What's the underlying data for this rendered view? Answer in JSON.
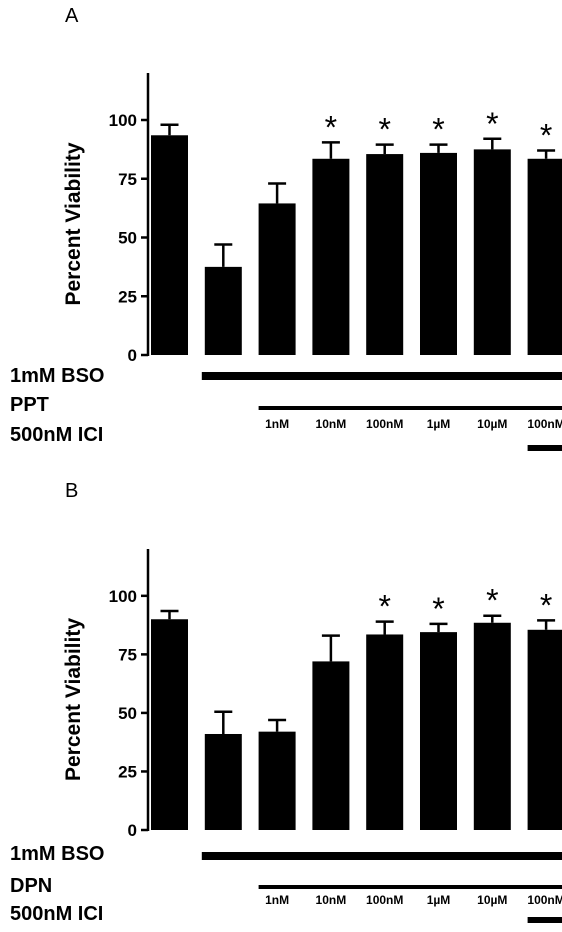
{
  "chart_data": [
    {
      "type": "bar",
      "panel": "A",
      "ylabel": "Percent Viability",
      "ylim": [
        0,
        120
      ],
      "yticks": [
        0,
        25,
        50,
        75,
        100
      ],
      "values": [
        93.5,
        37.5,
        64.5,
        83.5,
        85.5,
        86,
        87.5,
        83.5
      ],
      "errors": [
        4.5,
        9.5,
        8.5,
        7,
        4,
        3.5,
        4.5,
        3.5
      ],
      "significant": [
        false,
        false,
        false,
        true,
        true,
        true,
        true,
        true
      ],
      "significance_marker": "*",
      "treatment_rows": [
        {
          "label": "1mM BSO",
          "from_bar": 1,
          "to_bar": 7
        },
        {
          "label": "PPT",
          "from_bar": 2,
          "to_bar": 7
        },
        {
          "label": "500nM ICI",
          "from_bar": 7,
          "to_bar": 7
        }
      ],
      "concentrations": [
        "1nM",
        "10nM",
        "100nM",
        "1µM",
        "10µM",
        "100nM"
      ],
      "concentration_start_bar": 2
    },
    {
      "type": "bar",
      "panel": "B",
      "ylabel": "Percent Viability",
      "ylim": [
        0,
        120
      ],
      "yticks": [
        0,
        25,
        50,
        75,
        100
      ],
      "values": [
        90,
        41,
        42,
        72,
        83.5,
        84.5,
        88.5,
        85.5
      ],
      "errors": [
        3.5,
        9.5,
        5,
        11,
        5.5,
        3.5,
        3,
        4
      ],
      "significant": [
        false,
        false,
        false,
        false,
        true,
        true,
        true,
        true
      ],
      "significance_marker": "*",
      "treatment_rows": [
        {
          "label": "1mM BSO",
          "from_bar": 1,
          "to_bar": 7
        },
        {
          "label": "DPN",
          "from_bar": 2,
          "to_bar": 7
        },
        {
          "label": "500nM ICI",
          "from_bar": 7,
          "to_bar": 7
        }
      ],
      "concentrations": [
        "1nM",
        "10nM",
        "100nM",
        "1µM",
        "10µM",
        "100nM"
      ],
      "concentration_start_bar": 2
    }
  ]
}
